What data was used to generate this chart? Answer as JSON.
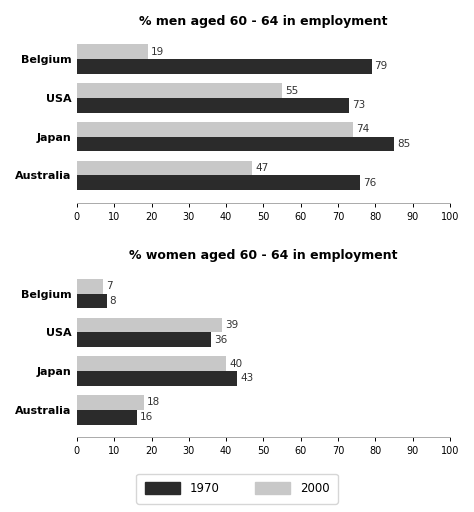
{
  "men_title": "% men aged 60 - 64 in employment",
  "women_title": "% women aged 60 - 64 in employment",
  "countries": [
    "Belgium",
    "USA",
    "Japan",
    "Australia"
  ],
  "men_1970": [
    79,
    73,
    85,
    76
  ],
  "men_2000": [
    19,
    55,
    74,
    47
  ],
  "women_1970": [
    8,
    36,
    43,
    16
  ],
  "women_2000": [
    7,
    39,
    40,
    18
  ],
  "color_1970": "#2b2b2b",
  "color_2000": "#c8c8c8",
  "xlim": [
    0,
    100
  ],
  "xticks": [
    0,
    10,
    20,
    30,
    40,
    50,
    60,
    70,
    80,
    90,
    100
  ],
  "bar_height": 0.38,
  "label_1970": "1970",
  "label_2000": "2000",
  "bg_color": "#ffffff",
  "label_fontsize": 7.5,
  "tick_fontsize": 7,
  "title_fontsize": 9
}
